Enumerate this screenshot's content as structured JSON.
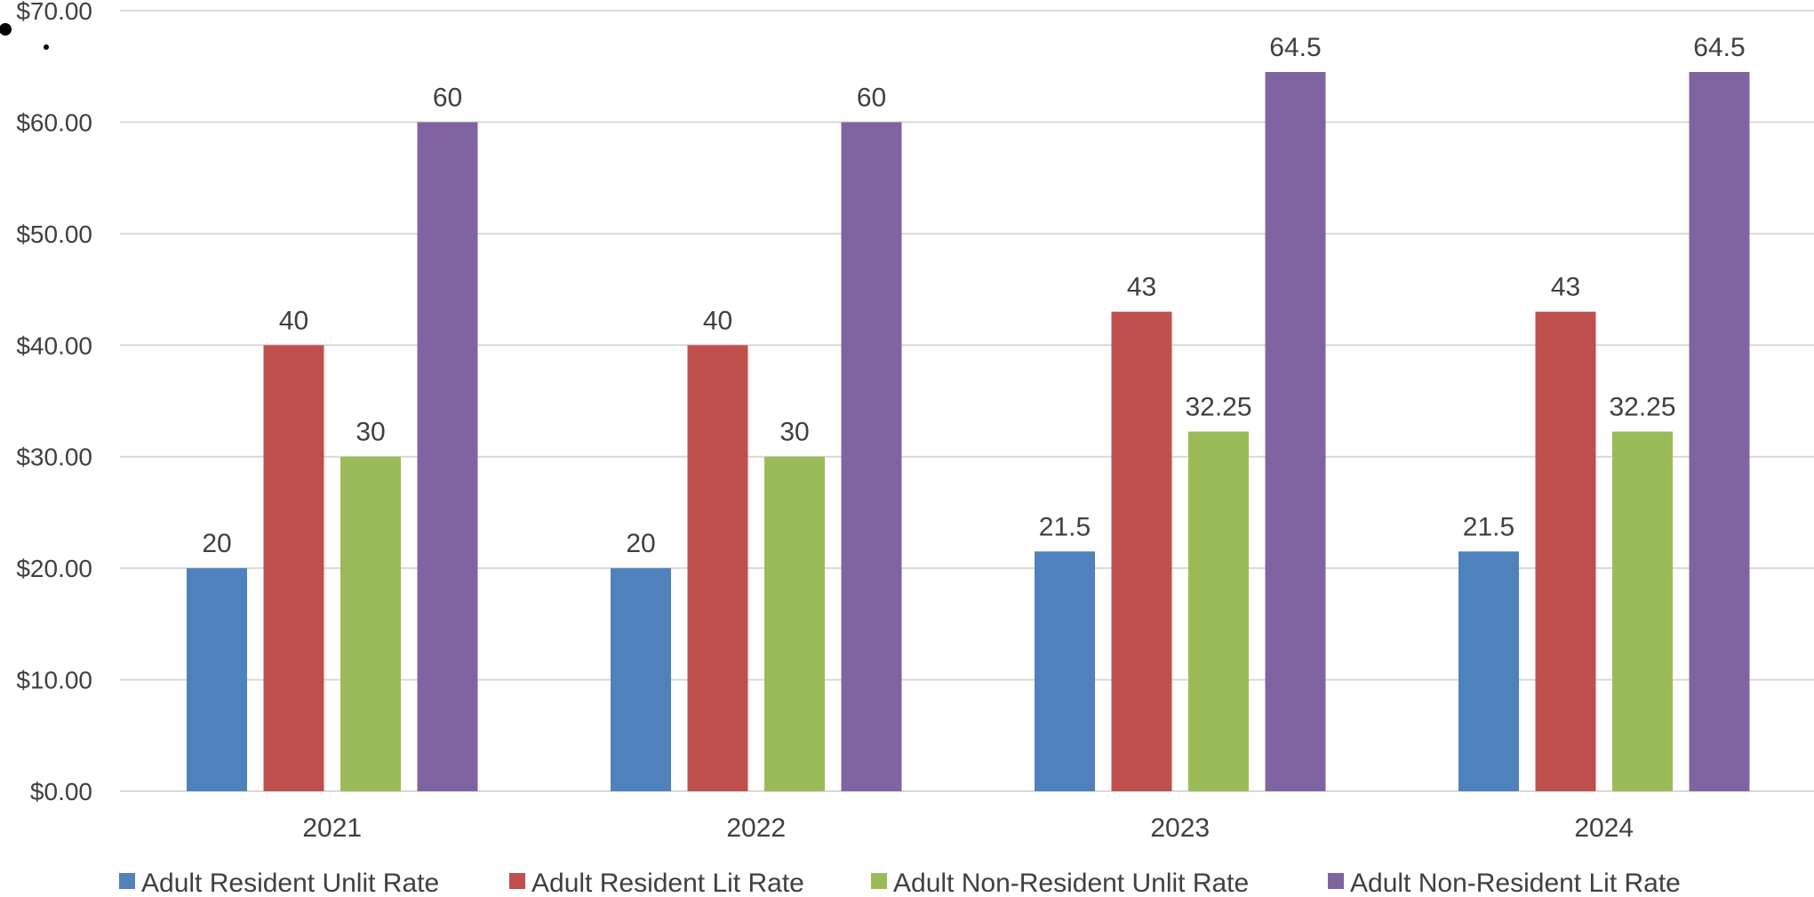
{
  "chart_data": {
    "type": "bar",
    "title": "",
    "xlabel": "",
    "ylabel": "",
    "categories": [
      "2021",
      "2022",
      "2023",
      "2024"
    ],
    "series": [
      {
        "name": "Adult Resident Unlit Rate",
        "color": "#4F81BD",
        "values": [
          20,
          20,
          21.5,
          21.5
        ]
      },
      {
        "name": "Adult Resident Lit Rate",
        "color": "#C0504D",
        "values": [
          40,
          40,
          43,
          43
        ]
      },
      {
        "name": "Adult Non-Resident Unlit Rate",
        "color": "#9BBB59",
        "values": [
          30,
          30,
          32.25,
          32.25
        ]
      },
      {
        "name": "Adult Non-Resident Lit Rate",
        "color": "#8064A2",
        "values": [
          60,
          60,
          64.5,
          64.5
        ]
      }
    ],
    "data_labels": [
      [
        "20",
        "20",
        "21.5",
        "21.5"
      ],
      [
        "40",
        "40",
        "43",
        "43"
      ],
      [
        "30",
        "30",
        "32.25",
        "32.25"
      ],
      [
        "60",
        "60",
        "64.5",
        "64.5"
      ]
    ],
    "ylim": [
      0,
      70
    ],
    "yticks": [
      0,
      10,
      20,
      30,
      40,
      50,
      60,
      70
    ],
    "ytick_labels": [
      "$0.00",
      "$10.00",
      "$20.00",
      "$30.00",
      "$40.00",
      "$50.00",
      "$60.00",
      "$70.00"
    ],
    "grid": true,
    "legend_position": "bottom"
  }
}
